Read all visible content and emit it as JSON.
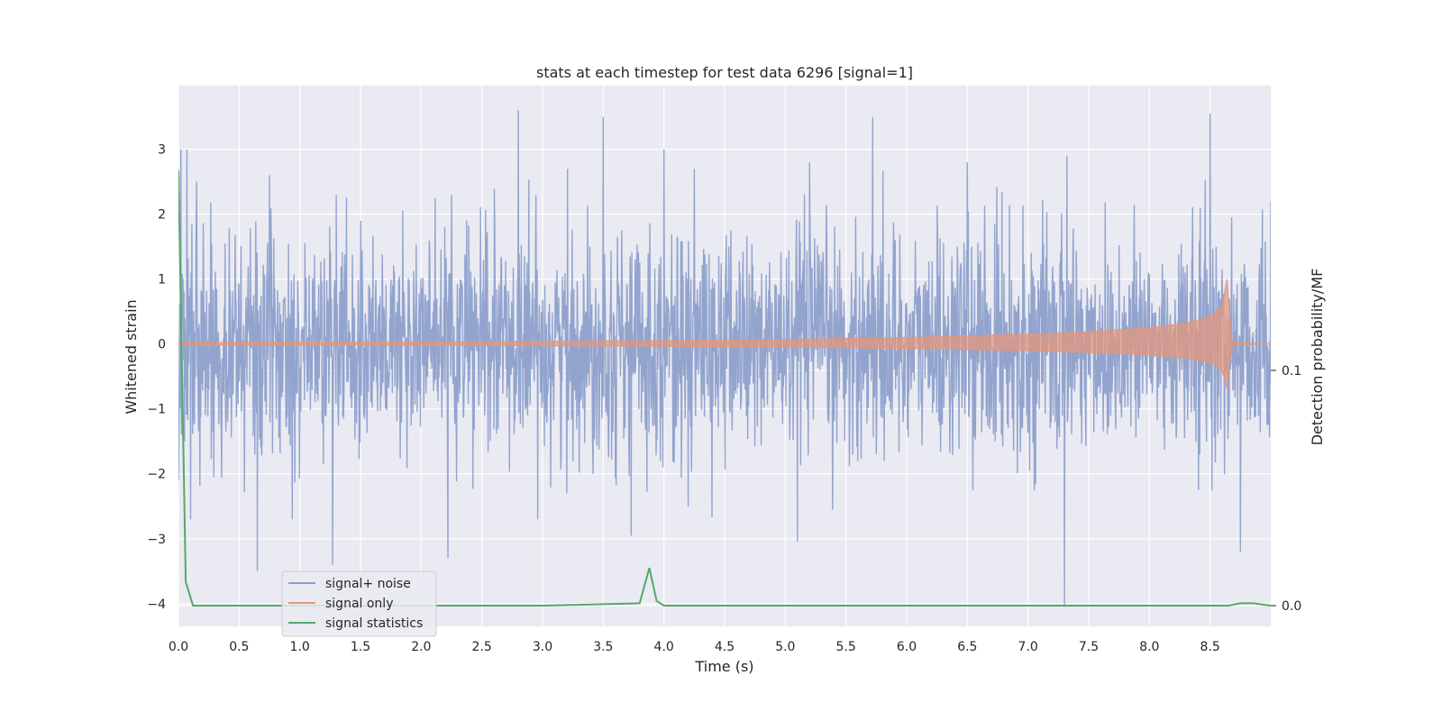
{
  "chart_data": {
    "type": "line",
    "title": "stats at each timestep for test data 6296 [signal=1]",
    "xlabel": "Time (s)",
    "ylabel": "Whitened strain",
    "y2label": "Detection probability/MF",
    "xlim": [
      0,
      9.0
    ],
    "ylim": [
      -4.35,
      3.98
    ],
    "y2lim": [
      -0.0088,
      0.221
    ],
    "xticks": [
      0.0,
      0.5,
      1.0,
      1.5,
      2.0,
      2.5,
      3.0,
      3.5,
      4.0,
      4.5,
      5.0,
      5.5,
      6.0,
      6.5,
      7.0,
      7.5,
      8.0,
      8.5
    ],
    "xtick_labels": [
      "0.0",
      "0.5",
      "1.0",
      "1.5",
      "2.0",
      "2.5",
      "3.0",
      "3.5",
      "4.0",
      "4.5",
      "5.0",
      "5.5",
      "6.0",
      "6.5",
      "7.0",
      "7.5",
      "8.0",
      "8.5"
    ],
    "yticks": [
      -4,
      -3,
      -2,
      -1,
      0,
      1,
      2,
      3
    ],
    "ytick_labels": [
      "−4",
      "−3",
      "−2",
      "−1",
      "0",
      "1",
      "2",
      "3"
    ],
    "y2ticks": [
      0.0,
      0.1
    ],
    "y2tick_labels": [
      "0.0",
      "0.1"
    ],
    "grid": true,
    "legend_position": "lower-left",
    "series": [
      {
        "name": "signal+ noise",
        "axis": "left",
        "color": "#8da0cb",
        "description_points": {
          "x": [
            0.0,
            0.02,
            0.05,
            0.07,
            0.1,
            0.15,
            0.65,
            0.75,
            1.27,
            1.3,
            2.22,
            2.25,
            2.8,
            3.2,
            3.5,
            3.73,
            4.0,
            4.2,
            5.1,
            5.2,
            5.72,
            6.5,
            7.3,
            7.32,
            8.5,
            8.75,
            9.0
          ],
          "y": [
            -2.1,
            3.0,
            -1.5,
            3.0,
            -2.7,
            2.5,
            -3.5,
            2.6,
            -3.4,
            2.3,
            -3.3,
            2.3,
            3.6,
            -2.3,
            3.5,
            -2.95,
            3.0,
            -2.5,
            -3.05,
            2.8,
            3.5,
            2.8,
            -4.05,
            2.9,
            3.55,
            -3.2,
            2.2
          ]
        },
        "envelope_typical": 1.6
      },
      {
        "name": "signal only",
        "axis": "left",
        "color": "#e5957a",
        "envelope": {
          "x": [
            0.0,
            2.0,
            4.0,
            5.0,
            6.0,
            7.0,
            7.5,
            8.0,
            8.3,
            8.5,
            8.6,
            8.65,
            8.66,
            8.67,
            9.0
          ],
          "y": [
            0.02,
            0.03,
            0.05,
            0.07,
            0.1,
            0.15,
            0.19,
            0.25,
            0.32,
            0.42,
            0.6,
            1.1,
            0.5,
            0.02,
            0.0
          ]
        }
      },
      {
        "name": "signal statistics",
        "axis": "right",
        "color": "#55a868",
        "x": [
          0.0,
          0.06,
          0.12,
          0.3,
          1.0,
          2.0,
          3.0,
          3.8,
          3.88,
          3.94,
          4.0,
          5.0,
          6.0,
          7.0,
          8.0,
          8.65,
          8.75,
          8.86,
          9.0
        ],
        "y": [
          0.185,
          0.01,
          0.0,
          0.0,
          0.0,
          0.0,
          0.0,
          0.001,
          0.016,
          0.002,
          0.0,
          0.0,
          0.0,
          0.0,
          0.0,
          0.0,
          0.001,
          0.001,
          0.0
        ]
      }
    ]
  }
}
